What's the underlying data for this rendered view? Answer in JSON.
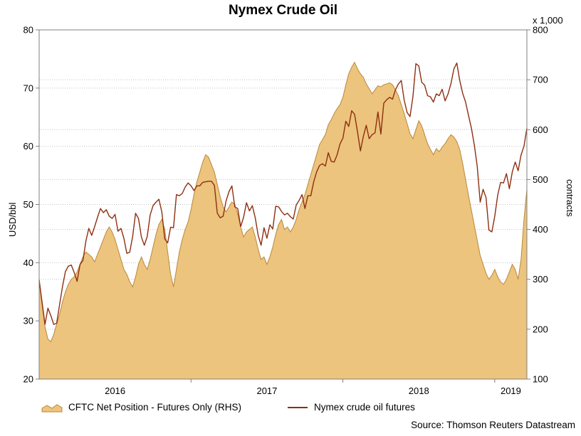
{
  "chart_data": {
    "type": "area+line",
    "title": "Nymex Crude Oil",
    "right_axis_unit": "x 1,000",
    "left_axis_title": "USD/bbl",
    "right_axis_title": "contracts",
    "source": "Source: Thomson Reuters Datastream",
    "x_start": 2016.0,
    "points_per_year": 52,
    "x_tick_labels": [
      "2016",
      "2017",
      "2018",
      "2019"
    ],
    "left_axis": {
      "min": 20,
      "max": 80,
      "ticks": [
        80,
        70,
        60,
        50,
        40,
        30,
        20
      ]
    },
    "right_axis": {
      "min": 100,
      "max": 800,
      "ticks": [
        800,
        700,
        600,
        500,
        400,
        300,
        200,
        100
      ]
    },
    "grid_color": "#c3c3c3",
    "frame_color": "#808080",
    "legend_position": "bottom",
    "series": [
      {
        "name": "CFTC Net Position - Futures Only (RHS)",
        "type": "area",
        "axis": "right",
        "color": "#ecc47d",
        "edge": "#b9883c",
        "values": [
          300,
          250,
          205,
          180,
          175,
          190,
          210,
          230,
          255,
          275,
          290,
          300,
          305,
          315,
          330,
          345,
          355,
          350,
          345,
          335,
          350,
          365,
          380,
          395,
          405,
          395,
          380,
          360,
          340,
          320,
          310,
          295,
          285,
          305,
          330,
          345,
          330,
          320,
          340,
          365,
          390,
          410,
          420,
          400,
          355,
          310,
          285,
          320,
          355,
          380,
          400,
          415,
          440,
          470,
          495,
          515,
          535,
          550,
          545,
          530,
          515,
          490,
          465,
          445,
          435,
          445,
          455,
          450,
          430,
          405,
          385,
          395,
          400,
          405,
          385,
          360,
          340,
          345,
          330,
          345,
          365,
          390,
          410,
          420,
          400,
          405,
          395,
          405,
          420,
          440,
          455,
          470,
          490,
          510,
          530,
          550,
          570,
          580,
          590,
          610,
          620,
          632,
          642,
          650,
          665,
          690,
          712,
          725,
          735,
          722,
          712,
          705,
          692,
          682,
          672,
          680,
          688,
          686,
          690,
          692,
          694,
          690,
          680,
          668,
          650,
          632,
          612,
          592,
          582,
          600,
          618,
          608,
          590,
          572,
          560,
          550,
          562,
          556,
          565,
          572,
          582,
          590,
          585,
          576,
          560,
          532,
          500,
          468,
          438,
          408,
          378,
          348,
          330,
          312,
          300,
          308,
          320,
          305,
          295,
          290,
          300,
          315,
          330,
          320,
          300,
          340,
          420,
          480
        ]
      },
      {
        "name": "Nymex crude oil futures",
        "type": "line",
        "axis": "left",
        "color": "#8e2f12",
        "values": [
          37.0,
          33.2,
          29.4,
          32.2,
          30.9,
          29.4,
          29.6,
          32.8,
          35.9,
          38.5,
          39.4,
          39.6,
          38.3,
          36.8,
          39.7,
          40.4,
          43.7,
          45.9,
          44.7,
          46.2,
          47.8,
          49.3,
          48.6,
          49.1,
          48.0,
          47.6,
          48.3,
          45.4,
          45.9,
          44.2,
          41.6,
          41.8,
          44.5,
          48.5,
          47.6,
          44.4,
          43.0,
          44.5,
          48.2,
          49.8,
          50.4,
          50.9,
          48.7,
          44.1,
          43.4,
          46.1,
          46.0,
          51.7,
          51.5,
          51.9,
          53.0,
          53.7,
          53.2,
          52.4,
          53.2,
          53.2,
          53.8,
          53.9,
          54.0,
          54.0,
          53.3,
          48.5,
          47.7,
          48.0,
          50.6,
          52.2,
          53.2,
          49.6,
          49.3,
          46.2,
          47.8,
          50.3,
          48.9,
          49.8,
          47.7,
          44.7,
          43.0,
          46.0,
          44.2,
          46.5,
          45.8,
          49.7,
          49.6,
          48.8,
          48.2,
          48.5,
          47.9,
          47.5,
          49.9,
          50.7,
          51.7,
          49.3,
          51.5,
          51.5,
          53.9,
          55.6,
          56.7,
          57.0,
          56.6,
          58.9,
          57.4,
          57.3,
          58.5,
          60.4,
          61.4,
          64.3,
          63.4,
          66.1,
          65.5,
          62.5,
          59.2,
          61.7,
          63.6,
          61.3,
          62.0,
          62.3,
          65.9,
          62.1,
          67.4,
          68.0,
          68.4,
          68.1,
          69.7,
          70.7,
          71.3,
          67.9,
          65.8,
          65.1,
          68.6,
          74.2,
          73.8,
          71.0,
          70.5,
          68.7,
          68.5,
          67.6,
          69.0,
          68.7,
          69.8,
          67.8,
          69.0,
          70.8,
          73.3,
          74.3,
          71.3,
          69.1,
          67.6,
          65.3,
          63.1,
          60.2,
          56.5,
          50.4,
          52.6,
          51.2,
          45.6,
          45.3,
          48.0,
          51.6,
          53.8,
          53.7,
          55.3,
          52.7,
          55.6,
          57.3,
          55.8,
          58.5,
          60.0,
          63.1
        ]
      }
    ]
  }
}
